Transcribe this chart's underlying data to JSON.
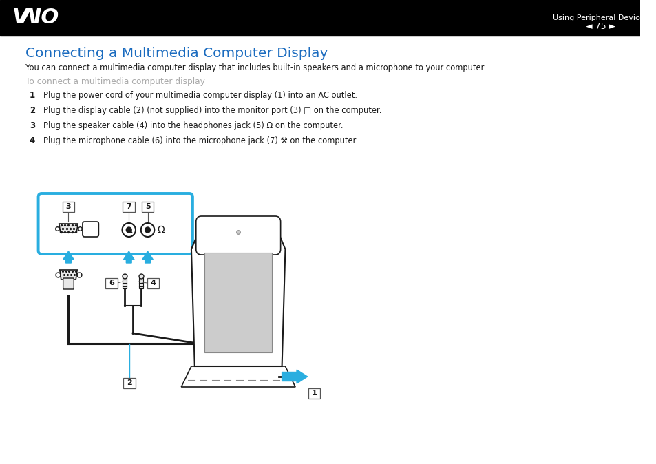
{
  "bg_color": "#ffffff",
  "header_bg": "#000000",
  "header_text_color": "#ffffff",
  "header_page": "◄ 75 ►",
  "header_subtitle": "Using Peripheral Devices",
  "title": "Connecting a Multimedia Computer Display",
  "title_color": "#1a6bbf",
  "subtitle_gray": "To connect a multimedia computer display",
  "subtitle_gray_color": "#aaaaaa",
  "body_text": "You can connect a multimedia computer display that includes built-in speakers and a microphone to your computer.",
  "step1_num": "1",
  "step1_txt": "Plug the power cord of your multimedia computer display (1) into an AC outlet.",
  "step2_num": "2",
  "step2_txt": "Plug the display cable (2) (not supplied) into the monitor port (3) □ on the computer.",
  "step3_num": "3",
  "step3_txt": "Plug the speaker cable (4) into the headphones jack (5) Ω on the computer.",
  "step4_num": "4",
  "step4_txt": "Plug the microphone cable (6) into the microphone jack (7) ⚒ on the computer.",
  "cyan": "#29aee0",
  "dark": "#1a1a1a",
  "gray_light": "#cccccc",
  "gray_mid": "#888888",
  "gray_dark": "#555555",
  "gray_fill": "#e8e8e8"
}
